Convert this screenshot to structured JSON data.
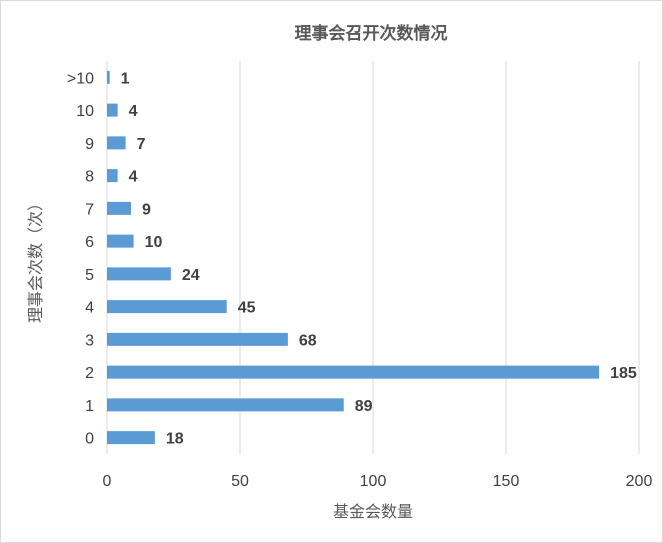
{
  "chart_data": {
    "type": "bar",
    "orientation": "horizontal",
    "title": "理事会召开次数情况",
    "xlabel": "基金会数量",
    "ylabel": "理事会次数（次）",
    "categories": [
      "0",
      "1",
      "2",
      "3",
      "4",
      "5",
      "6",
      "7",
      "8",
      "9",
      "10",
      ">10"
    ],
    "values": [
      18,
      89,
      185,
      68,
      45,
      24,
      10,
      9,
      4,
      7,
      4,
      1
    ],
    "xlim": [
      0,
      200
    ],
    "xticks": [
      "0",
      "50",
      "100",
      "150",
      "200"
    ],
    "grid": "vertical",
    "data_labels": true,
    "bar_color": "#5b9bd5"
  }
}
